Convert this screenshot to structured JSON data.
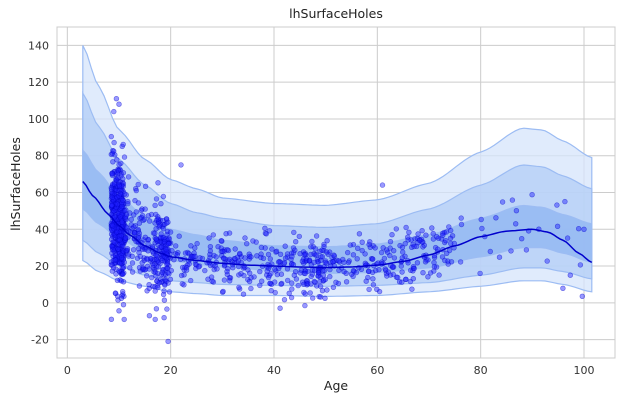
{
  "chart_data": {
    "type": "scatter",
    "title": "lhSurfaceHoles",
    "xlabel": "Age",
    "ylabel": "lhSurfaceHoles",
    "xlim": [
      -2,
      106
    ],
    "ylim": [
      -30,
      150
    ],
    "x_ticks": [
      0,
      20,
      40,
      60,
      80,
      100
    ],
    "y_ticks": [
      -20,
      0,
      20,
      40,
      60,
      80,
      100,
      120,
      140
    ],
    "grid": true,
    "colors": {
      "points": "#1f1fff",
      "points_edge": "#0000cc",
      "median_line": "#0000cc",
      "band_outer": "#d6e4fb",
      "band_mid": "#b3cdf7",
      "band_inner": "#8db4f2",
      "band_edge": "#9cbcf3",
      "grid": "#cccccc",
      "spine": "#cccccc"
    },
    "median_curve": {
      "x": [
        3,
        5,
        8,
        10,
        12,
        15,
        18,
        20,
        25,
        30,
        35,
        40,
        45,
        50,
        55,
        60,
        65,
        70,
        75,
        80,
        85,
        90,
        93,
        96,
        99,
        101.5
      ],
      "y": [
        66,
        58,
        48,
        42,
        37,
        31,
        27,
        25,
        23,
        21.5,
        20.5,
        20,
        19.5,
        19.2,
        19.5,
        20.5,
        22.5,
        26,
        31,
        36,
        39,
        40,
        38.5,
        34,
        27,
        22
      ]
    },
    "quantile_bands": [
      {
        "label": "outer",
        "x": [
          3,
          6,
          10,
          15,
          20,
          25,
          30,
          40,
          50,
          60,
          70,
          80,
          88,
          92,
          96,
          101.5
        ],
        "lower": [
          23,
          17,
          12,
          9,
          6,
          5,
          4,
          4,
          3.5,
          4,
          6,
          9,
          12,
          12,
          10,
          6
        ],
        "upper": [
          140,
          118,
          94,
          78,
          67,
          62,
          57,
          54,
          53,
          56,
          65,
          82,
          95,
          94,
          88,
          79
        ]
      },
      {
        "label": "mid",
        "x": [
          3,
          6,
          10,
          15,
          20,
          25,
          30,
          40,
          50,
          60,
          70,
          80,
          88,
          92,
          96,
          101.5
        ],
        "lower": [
          34,
          27,
          20,
          15,
          12,
          11,
          10,
          9.5,
          9,
          9.5,
          11,
          15,
          19,
          19,
          17,
          13
        ],
        "upper": [
          114,
          96,
          78,
          64,
          54,
          49,
          46,
          42,
          41,
          43,
          51,
          64,
          75,
          74,
          69,
          62
        ]
      },
      {
        "label": "inner",
        "x": [
          3,
          6,
          10,
          15,
          20,
          25,
          30,
          40,
          50,
          60,
          70,
          80,
          88,
          92,
          96,
          101.5
        ],
        "lower": [
          51,
          43,
          35,
          28,
          23,
          21,
          19.5,
          17.5,
          16,
          16.5,
          19,
          25,
          30,
          30,
          27,
          22
        ],
        "upper": [
          83,
          71,
          58,
          47,
          40,
          37,
          34,
          31,
          30.5,
          32,
          37,
          46,
          53,
          52,
          48,
          43
        ]
      }
    ],
    "scatter_summary": {
      "age_range": [
        6,
        101
      ],
      "y_range": [
        -21,
        111
      ]
    }
  }
}
